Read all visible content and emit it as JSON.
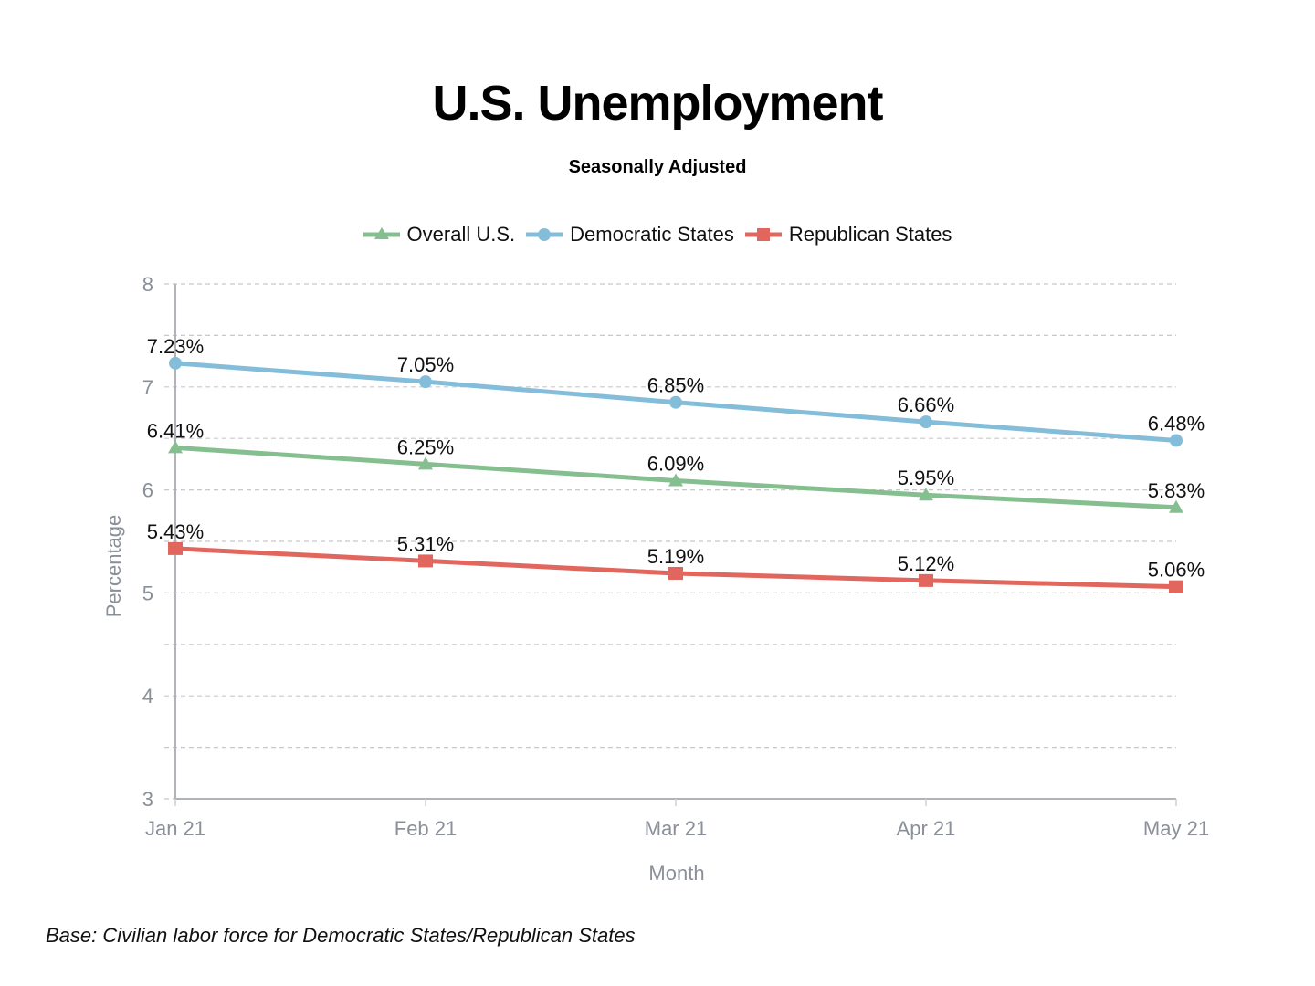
{
  "chart_data": {
    "type": "line",
    "title": "U.S. Unemployment",
    "subtitle": "Seasonally Adjusted",
    "xlabel": "Month",
    "ylabel": "Percentage",
    "categories": [
      "Jan 21",
      "Feb 21",
      "Mar 21",
      "Apr 21",
      "May 21"
    ],
    "ylim": [
      3,
      8
    ],
    "yticks": [
      "3",
      "4",
      "5",
      "6",
      "7",
      "8"
    ],
    "grid": true,
    "legend_position": "top-center",
    "series": [
      {
        "name": "Overall U.S.",
        "color": "#86bf8f",
        "marker": "triangle",
        "values": [
          6.41,
          6.25,
          6.09,
          5.95,
          5.83
        ],
        "labels": [
          "6.41%",
          "6.25%",
          "6.09%",
          "5.95%",
          "5.83%"
        ]
      },
      {
        "name": "Democratic States",
        "color": "#84bdd9",
        "marker": "circle",
        "values": [
          7.23,
          7.05,
          6.85,
          6.66,
          6.48
        ],
        "labels": [
          "7.23%",
          "7.05%",
          "6.85%",
          "6.66%",
          "6.48%"
        ]
      },
      {
        "name": "Republican States",
        "color": "#e0665e",
        "marker": "square",
        "values": [
          5.43,
          5.31,
          5.19,
          5.12,
          5.06
        ],
        "labels": [
          "5.43%",
          "5.31%",
          "5.19%",
          "5.12%",
          "5.06%"
        ]
      }
    ],
    "footnote": "Base: Civilian labor force for Democratic States/Republican States"
  }
}
